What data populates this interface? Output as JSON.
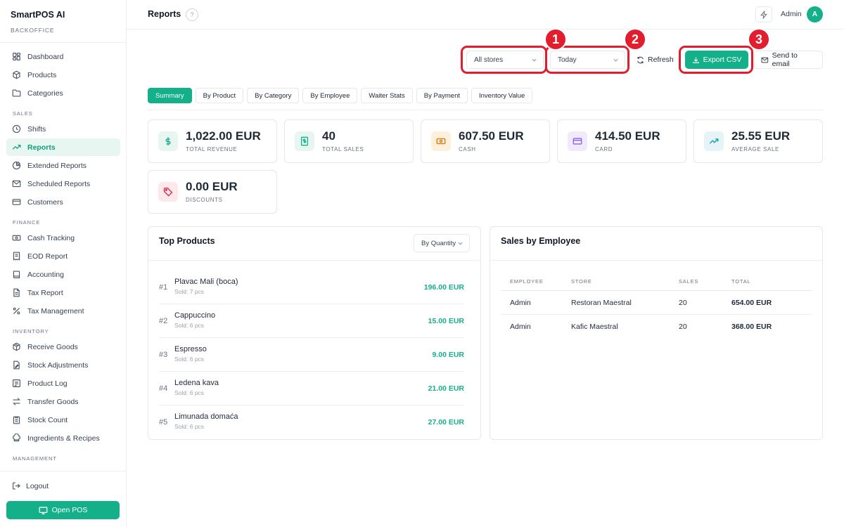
{
  "app": {
    "title": "SmartPOS AI",
    "subtitle": "BACKOFFICE"
  },
  "sidebar": {
    "items_top": [
      {
        "label": "Dashboard",
        "icon": "grid-icon"
      },
      {
        "label": "Products",
        "icon": "box-icon"
      },
      {
        "label": "Categories",
        "icon": "folder-icon"
      }
    ],
    "sales_heading": "SALES",
    "items_sales": [
      {
        "label": "Shifts",
        "icon": "clock-icon"
      },
      {
        "label": "Reports",
        "icon": "trend-icon",
        "active": true
      },
      {
        "label": "Extended Reports",
        "icon": "pie-icon"
      },
      {
        "label": "Scheduled Reports",
        "icon": "mail-icon"
      },
      {
        "label": "Customers",
        "icon": "card-icon"
      }
    ],
    "finance_heading": "FINANCE",
    "items_finance": [
      {
        "label": "Cash Tracking",
        "icon": "cash-icon"
      },
      {
        "label": "EOD Report",
        "icon": "receipt-icon"
      },
      {
        "label": "Accounting",
        "icon": "book-icon"
      },
      {
        "label": "Tax Report",
        "icon": "document-icon"
      },
      {
        "label": "Tax Management",
        "icon": "percent-icon"
      }
    ],
    "inventory_heading": "INVENTORY",
    "items_inventory": [
      {
        "label": "Receive Goods",
        "icon": "package-icon"
      },
      {
        "label": "Stock Adjustments",
        "icon": "edit-document-icon"
      },
      {
        "label": "Product Log",
        "icon": "list-icon"
      },
      {
        "label": "Transfer Goods",
        "icon": "transfer-icon"
      },
      {
        "label": "Stock Count",
        "icon": "clipboard-icon"
      },
      {
        "label": "Ingredients & Recipes",
        "icon": "chef-icon"
      }
    ],
    "management_heading": "MANAGEMENT",
    "logout": "Logout",
    "open_pos": "Open POS"
  },
  "header": {
    "title": "Reports",
    "help": "?",
    "user": "Admin",
    "avatar_initial": "A"
  },
  "toolbar": {
    "store_select": "All stores",
    "period_select": "Today",
    "refresh": "Refresh",
    "export": "Export CSV",
    "email": "Send to email",
    "markers": [
      "1",
      "2",
      "3"
    ],
    "highlight_color": "#e11d2e"
  },
  "tabs": [
    "Summary",
    "By Product",
    "By Category",
    "By Employee",
    "Waiter Stats",
    "By Payment",
    "Inventory Value"
  ],
  "stats": {
    "revenue": {
      "value": "1,022.00 EUR",
      "label": "TOTAL REVENUE"
    },
    "sales": {
      "value": "40",
      "label": "TOTAL SALES"
    },
    "cash": {
      "value": "607.50 EUR",
      "label": "CASH"
    },
    "card": {
      "value": "414.50 EUR",
      "label": "CARD"
    },
    "average": {
      "value": "25.55 EUR",
      "label": "AVERAGE SALE"
    },
    "discounts": {
      "value": "0.00 EUR",
      "label": "DISCOUNTS"
    }
  },
  "top_products": {
    "title": "Top Products",
    "sort": "By Quantity",
    "rows": [
      {
        "rank": "#1",
        "name": "Plavac Mali (boca)",
        "sold": "Sold: 7 pcs",
        "total": "196.00 EUR"
      },
      {
        "rank": "#2",
        "name": "Cappuccino",
        "sold": "Sold: 6 pcs",
        "total": "15.00 EUR"
      },
      {
        "rank": "#3",
        "name": "Espresso",
        "sold": "Sold: 6 pcs",
        "total": "9.00 EUR"
      },
      {
        "rank": "#4",
        "name": "Ledena kava",
        "sold": "Sold: 6 pcs",
        "total": "21.00 EUR"
      },
      {
        "rank": "#5",
        "name": "Limunada domaća",
        "sold": "Sold: 6 pcs",
        "total": "27.00 EUR"
      }
    ]
  },
  "sales_by_employee": {
    "title": "Sales by Employee",
    "columns": [
      "EMPLOYEE",
      "STORE",
      "SALES",
      "TOTAL"
    ],
    "rows": [
      {
        "employee": "Admin",
        "store": "Restoran Maestral",
        "sales": "20",
        "total": "654.00 EUR"
      },
      {
        "employee": "Admin",
        "store": "Kafic Maestral",
        "sales": "20",
        "total": "368.00 EUR"
      }
    ]
  },
  "colors": {
    "accent": "#14b08a",
    "accent_light": "#e7f6f1"
  }
}
